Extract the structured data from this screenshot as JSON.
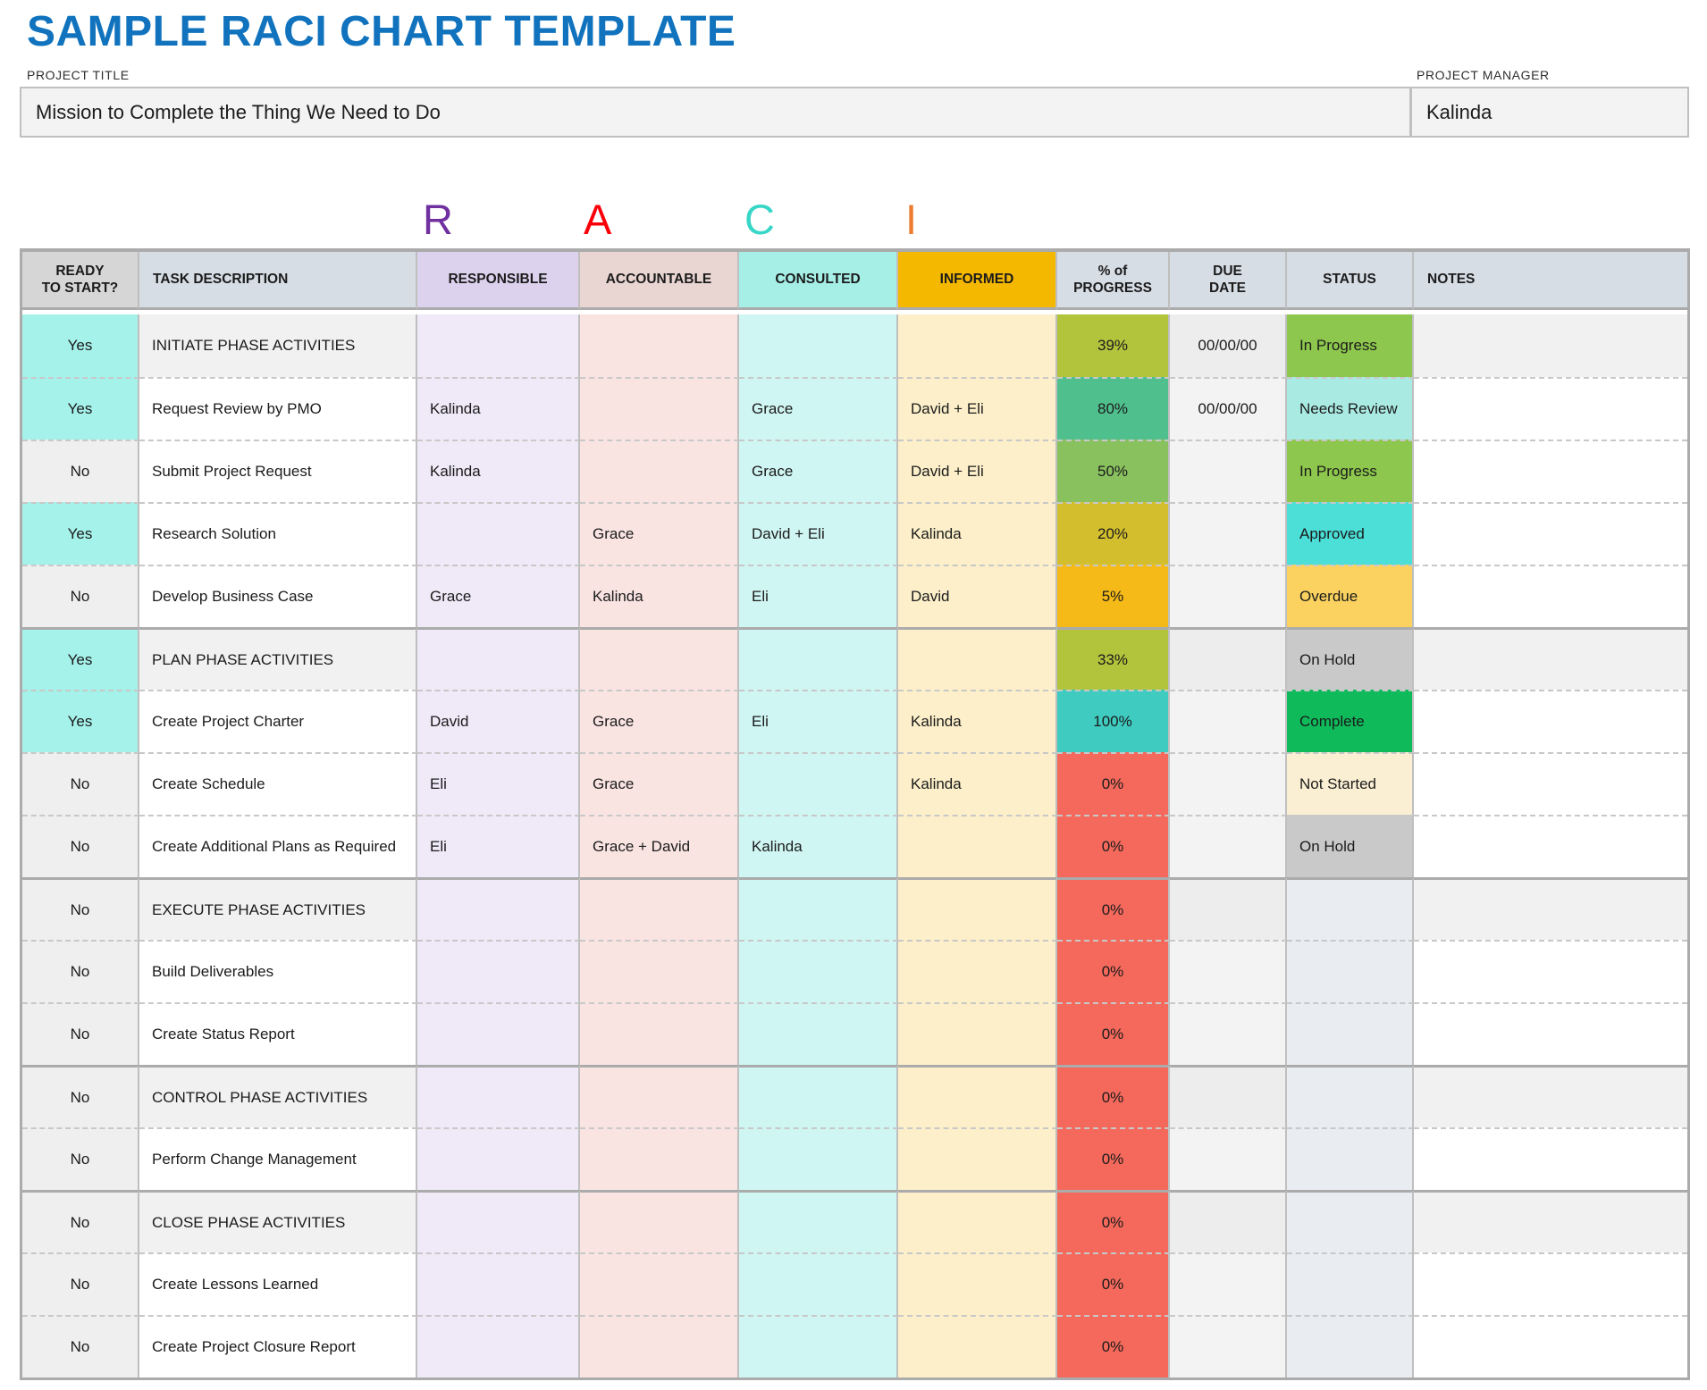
{
  "header": {
    "page_title": "SAMPLE RACI CHART TEMPLATE",
    "project_title_label": "PROJECT TITLE",
    "project_title_value": "Mission to Complete the Thing We Need to Do",
    "project_manager_label": "PROJECT MANAGER",
    "project_manager_value": "Kalinda"
  },
  "raci_letters": [
    {
      "letter": "R",
      "color": "#7030A0"
    },
    {
      "letter": "A",
      "color": "#FA0007"
    },
    {
      "letter": "C",
      "color": "#38D6C7"
    },
    {
      "letter": "I",
      "color": "#ED7D31"
    }
  ],
  "table": {
    "headers": [
      "READY\nTO START?",
      "TASK DESCRIPTION",
      "RESPONSIBLE",
      "ACCOUNTABLE",
      "CONSULTED",
      "INFORMED",
      "% of\nPROGRESS",
      "DUE\nDATE",
      "STATUS",
      "NOTES"
    ],
    "rows": [
      {
        "ready": "Yes",
        "task": "INITIATE PHASE ACTIVITIES",
        "phase": true,
        "section_start": false,
        "responsible": "",
        "accountable": "",
        "consulted": "",
        "informed": "",
        "progress": "39%",
        "progress_color": "#B2C33C",
        "due": "00/00/00",
        "status": "In Progress",
        "status_color": "#8DC74D",
        "notes": ""
      },
      {
        "ready": "Yes",
        "task": "Request Review by PMO",
        "phase": false,
        "section_start": false,
        "responsible": "Kalinda",
        "accountable": "",
        "consulted": "Grace",
        "informed": "David + Eli",
        "progress": "80%",
        "progress_color": "#4FC08D",
        "due": "00/00/00",
        "status": "Needs Review",
        "status_color": "#A9EAE3",
        "notes": ""
      },
      {
        "ready": "No",
        "task": "Submit Project Request",
        "phase": false,
        "section_start": false,
        "responsible": "Kalinda",
        "accountable": "",
        "consulted": "Grace",
        "informed": "David + Eli",
        "progress": "50%",
        "progress_color": "#89C15F",
        "due": "",
        "status": "In Progress",
        "status_color": "#8DC74D",
        "notes": ""
      },
      {
        "ready": "Yes",
        "task": "Research Solution",
        "phase": false,
        "section_start": false,
        "responsible": "",
        "accountable": "Grace",
        "consulted": "David + Eli",
        "informed": "Kalinda",
        "progress": "20%",
        "progress_color": "#D3BF2D",
        "due": "",
        "status": "Approved",
        "status_color": "#4BDFD8",
        "notes": ""
      },
      {
        "ready": "No",
        "task": "Develop Business Case",
        "phase": false,
        "section_start": false,
        "responsible": "Grace",
        "accountable": "Kalinda",
        "consulted": "Eli",
        "informed": "David",
        "progress": "5%",
        "progress_color": "#F5BA17",
        "due": "",
        "status": "Overdue",
        "status_color": "#FBD25F",
        "notes": ""
      },
      {
        "ready": "Yes",
        "task": "PLAN PHASE ACTIVITIES",
        "phase": true,
        "section_start": true,
        "responsible": "",
        "accountable": "",
        "consulted": "",
        "informed": "",
        "progress": "33%",
        "progress_color": "#B2C33C",
        "due": "",
        "status": "On Hold",
        "status_color": "#C9C9C9",
        "notes": ""
      },
      {
        "ready": "Yes",
        "task": "Create Project Charter",
        "phase": false,
        "section_start": false,
        "responsible": "David",
        "accountable": "Grace",
        "consulted": "Eli",
        "informed": "Kalinda",
        "progress": "100%",
        "progress_color": "#3FCBC0",
        "due": "",
        "status": "Complete",
        "status_color": "#0FBA5B",
        "notes": ""
      },
      {
        "ready": "No",
        "task": "Create Schedule",
        "phase": false,
        "section_start": false,
        "responsible": "Eli",
        "accountable": "Grace",
        "consulted": "",
        "informed": "Kalinda",
        "progress": "0%",
        "progress_color": "#F4695C",
        "due": "",
        "status": "Not Started",
        "status_color": "#FAEFD2",
        "notes": ""
      },
      {
        "ready": "No",
        "task": "Create Additional Plans as Required",
        "phase": false,
        "section_start": false,
        "responsible": "Eli",
        "accountable": "Grace + David",
        "consulted": "Kalinda",
        "informed": "",
        "progress": "0%",
        "progress_color": "#F4695C",
        "due": "",
        "status": "On Hold",
        "status_color": "#C9C9C9",
        "notes": ""
      },
      {
        "ready": "No",
        "task": "EXECUTE PHASE ACTIVITIES",
        "phase": true,
        "section_start": true,
        "responsible": "",
        "accountable": "",
        "consulted": "",
        "informed": "",
        "progress": "0%",
        "progress_color": "#F4695C",
        "due": "",
        "status": "",
        "status_color": "",
        "notes": ""
      },
      {
        "ready": "No",
        "task": "Build Deliverables",
        "phase": false,
        "section_start": false,
        "responsible": "",
        "accountable": "",
        "consulted": "",
        "informed": "",
        "progress": "0%",
        "progress_color": "#F4695C",
        "due": "",
        "status": "",
        "status_color": "",
        "notes": ""
      },
      {
        "ready": "No",
        "task": "Create Status Report",
        "phase": false,
        "section_start": false,
        "responsible": "",
        "accountable": "",
        "consulted": "",
        "informed": "",
        "progress": "0%",
        "progress_color": "#F4695C",
        "due": "",
        "status": "",
        "status_color": "",
        "notes": ""
      },
      {
        "ready": "No",
        "task": "CONTROL PHASE ACTIVITIES",
        "phase": true,
        "section_start": true,
        "responsible": "",
        "accountable": "",
        "consulted": "",
        "informed": "",
        "progress": "0%",
        "progress_color": "#F4695C",
        "due": "",
        "status": "",
        "status_color": "",
        "notes": ""
      },
      {
        "ready": "No",
        "task": "Perform Change Management",
        "phase": false,
        "section_start": false,
        "responsible": "",
        "accountable": "",
        "consulted": "",
        "informed": "",
        "progress": "0%",
        "progress_color": "#F4695C",
        "due": "",
        "status": "",
        "status_color": "",
        "notes": ""
      },
      {
        "ready": "No",
        "task": "CLOSE PHASE ACTIVITIES",
        "phase": true,
        "section_start": true,
        "responsible": "",
        "accountable": "",
        "consulted": "",
        "informed": "",
        "progress": "0%",
        "progress_color": "#F4695C",
        "due": "",
        "status": "",
        "status_color": "",
        "notes": ""
      },
      {
        "ready": "No",
        "task": "Create Lessons Learned",
        "phase": false,
        "section_start": false,
        "responsible": "",
        "accountable": "",
        "consulted": "",
        "informed": "",
        "progress": "0%",
        "progress_color": "#F4695C",
        "due": "",
        "status": "",
        "status_color": "",
        "notes": ""
      },
      {
        "ready": "No",
        "task": "Create Project Closure Report",
        "phase": false,
        "section_start": false,
        "responsible": "",
        "accountable": "",
        "consulted": "",
        "informed": "",
        "progress": "0%",
        "progress_color": "#F4695C",
        "due": "",
        "status": "",
        "status_color": "",
        "notes": ""
      }
    ]
  },
  "colors": {
    "title_blue": "#1173BD",
    "header_gray": "#D6D6D6",
    "header_blue": "#D7DDE5",
    "header_lavender": "#DDD2EE",
    "header_pink": "#E9D6D3",
    "header_aqua": "#A6EFE7",
    "header_gold": "#F5B800",
    "cell_yes": "#A5F2EA",
    "cell_no": "#EFEFEF",
    "cell_phase": "#F1F1F1",
    "cell_lavender": "#EFE9F8",
    "cell_pink": "#F9E4E2",
    "cell_cyan": "#CFF6F3",
    "cell_cream": "#FCEFC9",
    "cell_due": "#F3F3F4",
    "cell_status_empty": "#E9EDF2",
    "border_outer": "#ABABAB",
    "border_col": "#BFBFBF",
    "border_dotted": "#C8C8C8",
    "box_bg": "#F3F3F3",
    "box_border": "#C0C0C0"
  }
}
